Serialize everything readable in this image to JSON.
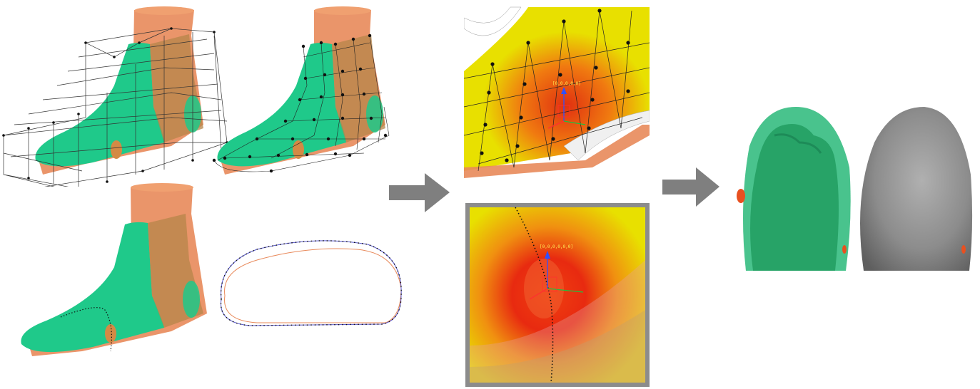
{
  "figure": {
    "panels": {
      "ffd_cage": {
        "icon": "foot-last-with-lattice-cage"
      },
      "control_mesh": {
        "icon": "foot-last-with-control-point-mesh"
      },
      "section_curve": {
        "icon": "foot-last-with-dotted-section-curve"
      },
      "cross_section": {
        "icon": "cross-section-outline-overlay"
      },
      "deformation_closeup_top": {
        "icon": "heatmap-deformation-closeup",
        "coord_label": "[0,0,0,0,0]"
      },
      "deformation_closeup_bottom": {
        "icon": "heatmap-deformation-closeup-framed",
        "coord_label": "[0,0,0,0,0,0]"
      },
      "overlay_result": {
        "icon": "translucent-last-over-scanned-foot"
      },
      "final_last": {
        "icon": "gray-shaded-final-last"
      }
    },
    "flow_arrows": [
      "right-arrow",
      "right-arrow"
    ],
    "colors": {
      "last_green": "#1fc98a",
      "foot_orange": "#e8895a",
      "heat_yellow": "#e8e000",
      "heat_red": "#e03010",
      "arrow_gray": "#7f7f7f",
      "final_gray": "#8c8c8c"
    }
  }
}
